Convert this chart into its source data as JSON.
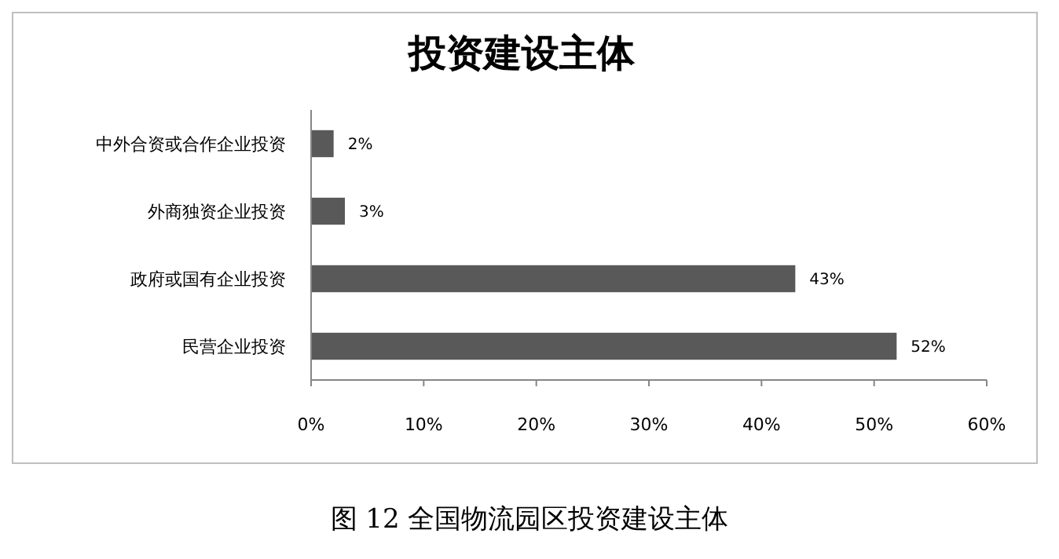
{
  "chart_data": {
    "type": "bar",
    "orientation": "horizontal",
    "title": "投资建设主体",
    "categories": [
      "中外合资或合作企业投资",
      "外商独资企业投资",
      "政府或国有企业投资",
      "民营企业投资"
    ],
    "values": [
      2,
      3,
      43,
      52
    ],
    "color": "#595959",
    "value_labels": [
      "2%",
      "3%",
      "43%",
      "52%"
    ],
    "xlim": [
      0,
      60
    ],
    "xticks": [
      {
        "value": 0,
        "label": "0%"
      },
      {
        "value": 10,
        "label": "10%"
      },
      {
        "value": 20,
        "label": "20%"
      },
      {
        "value": 30,
        "label": "30%"
      },
      {
        "value": 40,
        "label": "40%"
      },
      {
        "value": 50,
        "label": "50%"
      },
      {
        "value": 60,
        "label": "60%"
      }
    ],
    "grid": false,
    "annotations": [
      "图 12  全国物流园区投资建设主体"
    ]
  }
}
